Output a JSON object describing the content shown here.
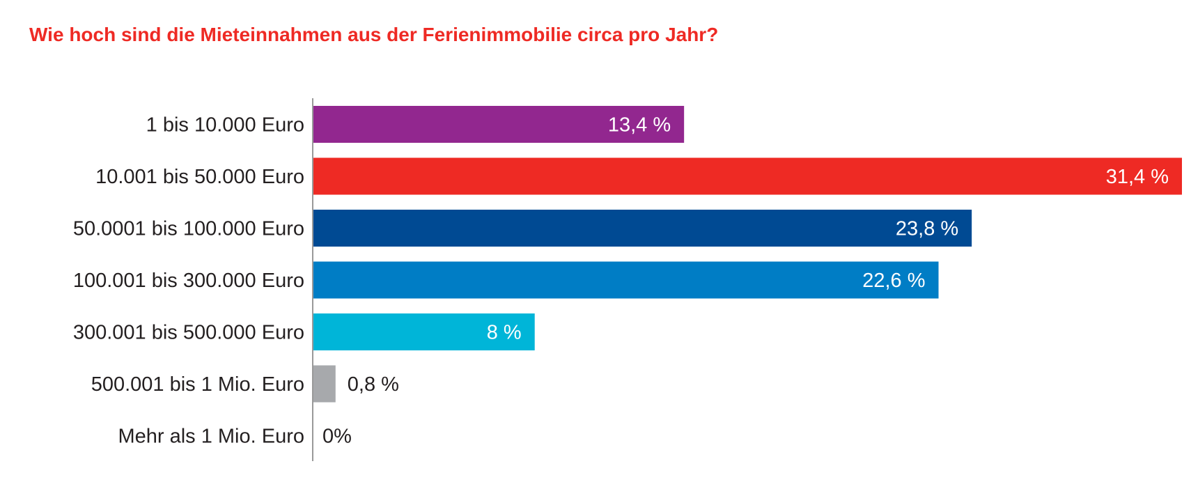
{
  "chart_data": {
    "type": "bar",
    "orientation": "horizontal",
    "title": "Wie hoch sind die Mieteinnahmen aus der Ferienimmobilie circa pro Jahr?",
    "title_color": "#ee2a24",
    "categories": [
      "1 bis 10.000 Euro",
      "10.001 bis 50.000 Euro",
      "50.0001 bis 100.000 Euro",
      "100.001 bis 300.000 Euro",
      "300.001 bis 500.000 Euro",
      "500.001 bis 1 Mio. Euro",
      "Mehr als 1 Mio. Euro"
    ],
    "values": [
      13.4,
      31.4,
      23.8,
      22.6,
      8,
      0.8,
      0
    ],
    "data_labels": [
      "13,4 %",
      "31,4 %",
      "23,8 %",
      "22,6 %",
      "8 %",
      "0,8 %",
      "0%"
    ],
    "colors": [
      "#92278f",
      "#ee2a24",
      "#004a93",
      "#007dc5",
      "#00b5d8",
      "#a7a9ac",
      "#a7a9ac"
    ],
    "unit": "%",
    "xlim": [
      0,
      31.4
    ],
    "grid": false,
    "xlabel": "",
    "ylabel": ""
  }
}
